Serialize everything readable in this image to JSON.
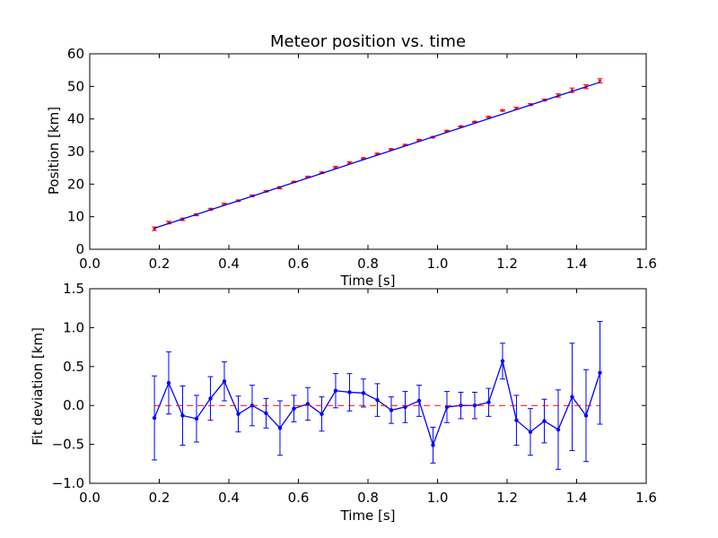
{
  "chart_data": [
    {
      "type": "scatter",
      "title": "Meteor position vs. time",
      "xlabel": "Time [s]",
      "ylabel": "Position [km]",
      "xlim": [
        0,
        1.6
      ],
      "ylim": [
        0,
        60
      ],
      "xticks": [
        "0.0",
        "0.2",
        "0.4",
        "0.6",
        "0.8",
        "1.0",
        "1.2",
        "1.4",
        "1.6"
      ],
      "yticks": [
        "0",
        "10",
        "20",
        "30",
        "40",
        "50",
        "60"
      ],
      "grid": false,
      "series": [
        {
          "kind": "errorbar-points",
          "color": "#ff0000",
          "x": [
            0.186,
            0.227,
            0.267,
            0.307,
            0.347,
            0.387,
            0.427,
            0.467,
            0.507,
            0.547,
            0.587,
            0.627,
            0.667,
            0.707,
            0.747,
            0.787,
            0.827,
            0.867,
            0.907,
            0.947,
            0.987,
            1.027,
            1.067,
            1.107,
            1.147,
            1.187,
            1.227,
            1.267,
            1.307,
            1.347,
            1.387,
            1.427,
            1.467
          ],
          "y": [
            6.3,
            8.2,
            9.2,
            10.6,
            12.3,
            13.9,
            14.9,
            16.4,
            17.8,
            18.9,
            20.7,
            22.2,
            23.5,
            25.2,
            26.6,
            27.9,
            29.3,
            30.7,
            32.0,
            33.5,
            34.4,
            36.3,
            37.7,
            39.1,
            40.6,
            42.6,
            43.3,
            44.4,
            45.8,
            47.2,
            48.8,
            49.9,
            51.7
          ],
          "yerr": [
            0.54,
            0.4,
            0.38,
            0.3,
            0.28,
            0.25,
            0.23,
            0.26,
            0.19,
            0.35,
            0.17,
            0.21,
            0.22,
            0.22,
            0.24,
            0.18,
            0.21,
            0.17,
            0.2,
            0.2,
            0.23,
            0.2,
            0.17,
            0.17,
            0.18,
            0.23,
            0.32,
            0.3,
            0.28,
            0.51,
            0.69,
            0.59,
            0.66
          ]
        },
        {
          "kind": "line",
          "color": "#0000ff",
          "x": [
            0.186,
            1.467
          ],
          "y": [
            6.46,
            51.28
          ]
        }
      ]
    },
    {
      "type": "line",
      "xlabel": "Time [s]",
      "ylabel": "Fit deviation [km]",
      "xlim": [
        0,
        1.6
      ],
      "ylim": [
        -1.0,
        1.5
      ],
      "xticks": [
        "0.0",
        "0.2",
        "0.4",
        "0.6",
        "0.8",
        "1.0",
        "1.2",
        "1.4",
        "1.6"
      ],
      "yticks": [
        "−1.0",
        "−0.5",
        "0.0",
        "0.5",
        "1.0",
        "1.5"
      ],
      "grid": false,
      "series": [
        {
          "kind": "errorbar-line",
          "color": "#0000ff",
          "x": [
            0.186,
            0.227,
            0.267,
            0.307,
            0.347,
            0.387,
            0.427,
            0.467,
            0.507,
            0.547,
            0.587,
            0.627,
            0.667,
            0.707,
            0.747,
            0.787,
            0.827,
            0.867,
            0.907,
            0.947,
            0.987,
            1.027,
            1.067,
            1.107,
            1.147,
            1.187,
            1.227,
            1.267,
            1.307,
            1.347,
            1.387,
            1.427,
            1.467
          ],
          "y": [
            -0.16,
            0.29,
            -0.13,
            -0.17,
            0.09,
            0.31,
            -0.11,
            0.0,
            -0.1,
            -0.29,
            -0.04,
            0.02,
            -0.11,
            0.19,
            0.17,
            0.16,
            0.07,
            -0.06,
            -0.02,
            0.06,
            -0.51,
            -0.02,
            0.0,
            0.0,
            0.04,
            0.57,
            -0.19,
            -0.34,
            -0.2,
            -0.31,
            0.11,
            -0.13,
            0.42
          ],
          "yerr": [
            0.54,
            0.4,
            0.38,
            0.3,
            0.28,
            0.25,
            0.23,
            0.26,
            0.19,
            0.35,
            0.17,
            0.21,
            0.22,
            0.22,
            0.24,
            0.18,
            0.21,
            0.17,
            0.2,
            0.2,
            0.23,
            0.2,
            0.17,
            0.17,
            0.18,
            0.23,
            0.32,
            0.3,
            0.28,
            0.51,
            0.69,
            0.59,
            0.66
          ]
        },
        {
          "kind": "reference-line",
          "style": "dashed",
          "color": "#ff0000",
          "y": 0
        }
      ]
    }
  ]
}
